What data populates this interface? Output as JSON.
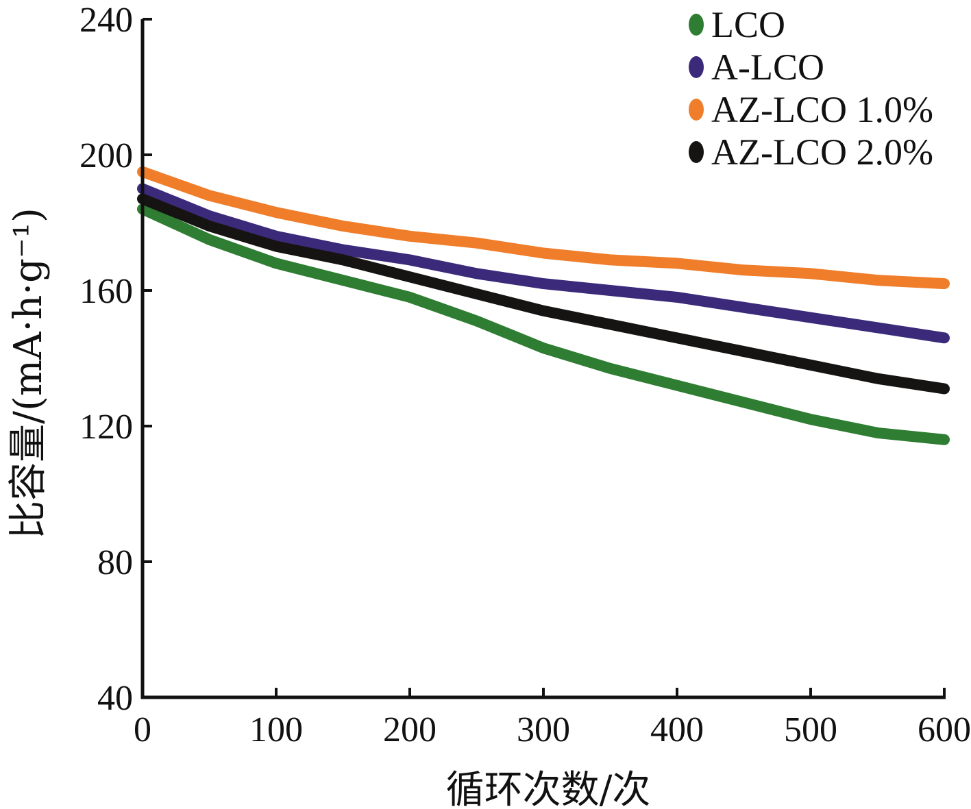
{
  "chart_data": {
    "type": "line",
    "xlabel": "循环次数/次",
    "ylabel": "比容量/(mA·h·g⁻¹)",
    "xlim": [
      0,
      600
    ],
    "ylim": [
      40,
      240
    ],
    "xticks": [
      "0",
      "100",
      "200",
      "300",
      "400",
      "500",
      "600"
    ],
    "yticks": [
      "40",
      "80",
      "120",
      "160",
      "200",
      "240"
    ],
    "grid": false,
    "legend_position": "top-right",
    "x": [
      0,
      50,
      100,
      150,
      200,
      250,
      300,
      350,
      400,
      450,
      500,
      550,
      600
    ],
    "series": [
      {
        "name": "LCO",
        "color": "#2e7d32",
        "values": [
          184,
          175,
          168,
          163,
          158,
          151,
          143,
          137,
          132,
          127,
          122,
          118,
          116
        ]
      },
      {
        "name": "A-LCO",
        "color": "#3b2a7a",
        "values": [
          190,
          182,
          176,
          172,
          169,
          165,
          162,
          160,
          158,
          155,
          152,
          149,
          146
        ]
      },
      {
        "name": "AZ-LCO 1.0%",
        "color": "#ef7d2a",
        "values": [
          195,
          188,
          183,
          179,
          176,
          174,
          171,
          169,
          168,
          166,
          165,
          163,
          162
        ]
      },
      {
        "name": "AZ-LCO 2.0%",
        "color": "#161412",
        "values": [
          187,
          179,
          173,
          169,
          164,
          159,
          154,
          150,
          146,
          142,
          138,
          134,
          131
        ]
      }
    ]
  }
}
